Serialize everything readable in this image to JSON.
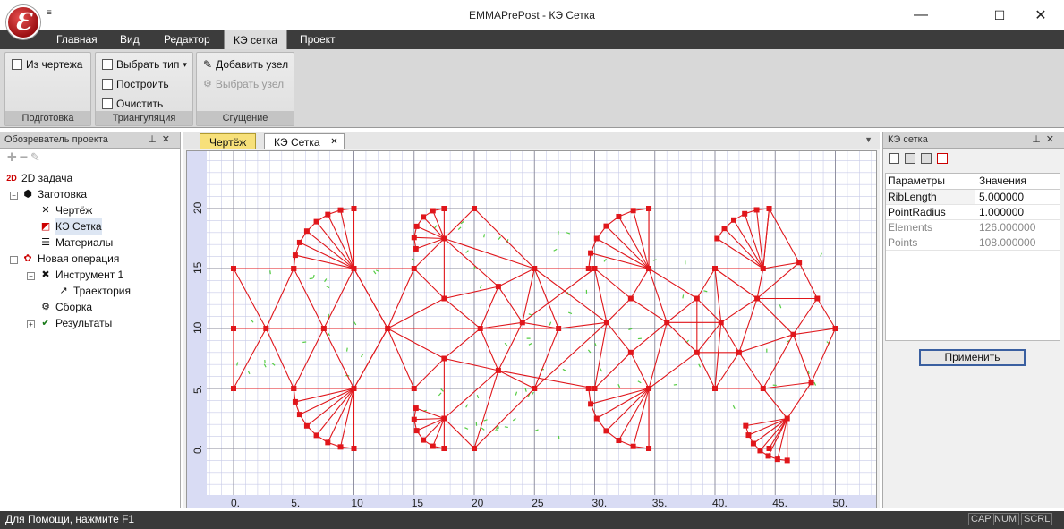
{
  "window": {
    "title": "EMMAPrePost - КЭ Сетка",
    "qat": "≡",
    "minimize": "—",
    "maximize": "☐",
    "close": "✕",
    "logo": "Ɛ"
  },
  "menu": {
    "tabs": [
      "Главная",
      "Вид",
      "Редактор",
      "КЭ сетка",
      "Проект"
    ],
    "active": "КЭ сетка"
  },
  "ribbon": {
    "groups": [
      {
        "label": "Подготовка",
        "buttons": [
          {
            "label": "Из чертежа",
            "enabled": true
          }
        ]
      },
      {
        "label": "Триангуляция",
        "buttons": [
          {
            "label": "Выбрать тип",
            "enabled": true
          },
          {
            "label": "Построить",
            "enabled": true
          },
          {
            "label": "Очистить",
            "enabled": true
          }
        ]
      },
      {
        "label": "Сгущение",
        "buttons": [
          {
            "label": "Добавить узел",
            "enabled": true
          },
          {
            "label": "Выбрать узел",
            "enabled": false
          }
        ]
      }
    ],
    "dropdown_glyph": "▾"
  },
  "explorer": {
    "title": "Обозреватель проекта",
    "tools": "✚  ━  ✎",
    "tree": [
      {
        "label": "2D задача",
        "icon": "2d-icon"
      },
      {
        "label": "Заготовка",
        "icon": "parts-icon"
      },
      {
        "label": "Чертёж",
        "icon": "drawing-icon"
      },
      {
        "label": "КЭ Сетка",
        "icon": "mesh-icon"
      },
      {
        "label": "Материалы",
        "icon": "materials-icon"
      },
      {
        "label": "Новая операция",
        "icon": "operation-icon"
      },
      {
        "label": "Инструмент 1",
        "icon": "tool-icon"
      },
      {
        "label": "Траектория",
        "icon": "trajectory-icon"
      },
      {
        "label": "Сборка",
        "icon": "assembly-icon"
      },
      {
        "label": "Результаты",
        "icon": "results-icon"
      }
    ]
  },
  "doc_tabs": {
    "tabs": [
      "Чертёж",
      "КЭ Сетка"
    ],
    "active": "КЭ Сетка",
    "close": "✕",
    "menu": "▼"
  },
  "canvas": {
    "x_ticks": [
      "0.",
      "5.",
      "10",
      "15",
      "20",
      "25",
      "30.",
      "35.",
      "40.",
      "45.",
      "50."
    ],
    "y_ticks": [
      "0.",
      "5.",
      "10",
      "15",
      "20"
    ],
    "mesh_color": "#e0161b",
    "node_color": "#e0161b",
    "grid_major": "#8a8a9a",
    "grid_minor": "#c8cbe8",
    "axis_color": "#3344cc"
  },
  "properties": {
    "title": "КЭ сетка",
    "headers": [
      "Параметры",
      "Значения"
    ],
    "rows": [
      {
        "name": "RibLength",
        "value": "5.000000"
      },
      {
        "name": "PointRadius",
        "value": "1.000000"
      },
      {
        "name": "Elements",
        "value": "126.000000"
      },
      {
        "name": "Points",
        "value": "108.000000"
      }
    ],
    "apply": "Применить"
  },
  "status": {
    "help": "Для Помощи, нажмите F1",
    "cap": "CAP",
    "num": "NUM",
    "scrl": "SCRL"
  }
}
